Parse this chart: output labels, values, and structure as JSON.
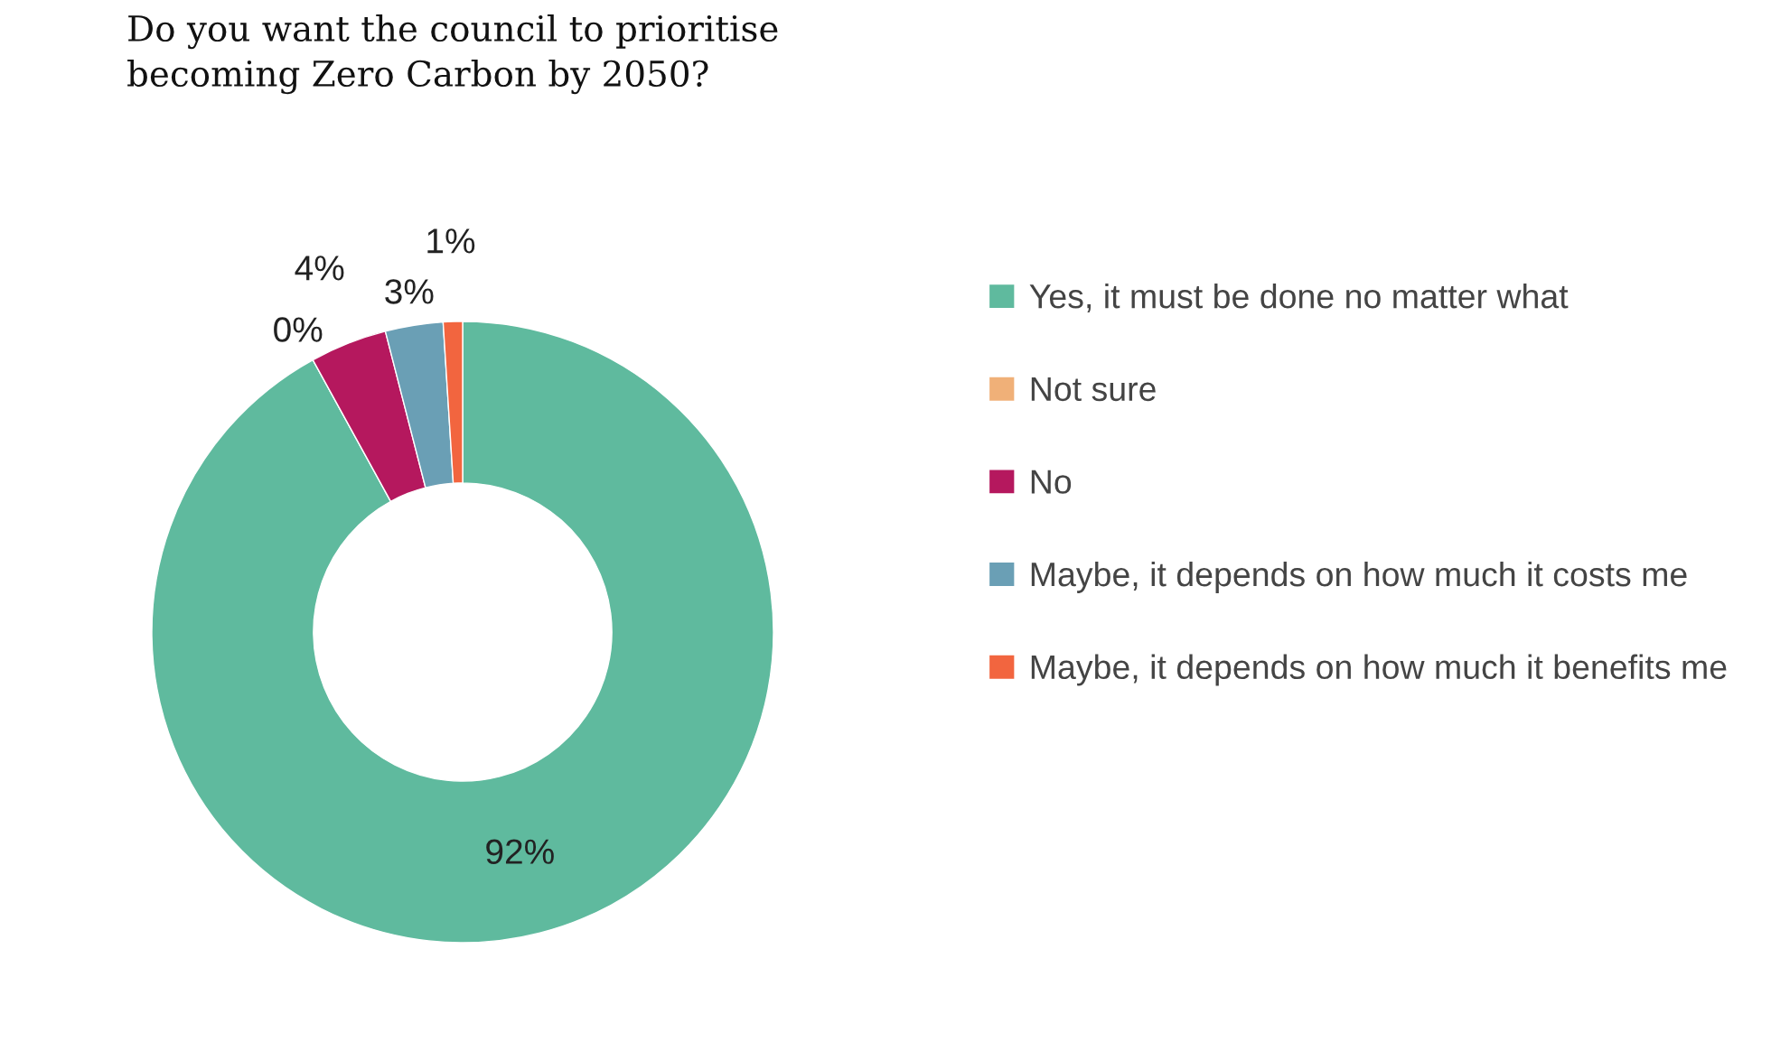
{
  "chart_data": {
    "type": "donut",
    "title": "Do you want the council to prioritise\nbecoming Zero Carbon by 2050?",
    "categories": [
      "Yes, it must be done no matter what",
      "Not sure",
      "No",
      "Maybe, it depends on how much it costs me",
      "Maybe, it depends on how much it benefits me"
    ],
    "values": [
      92,
      0,
      4,
      3,
      1
    ],
    "colors": [
      "#5fba9e",
      "#f0b078",
      "#b5185e",
      "#6a9fb5",
      "#f2653f"
    ],
    "value_labels": [
      "92%",
      "0%",
      "4%",
      "3%",
      "1%"
    ],
    "legend": "right"
  }
}
